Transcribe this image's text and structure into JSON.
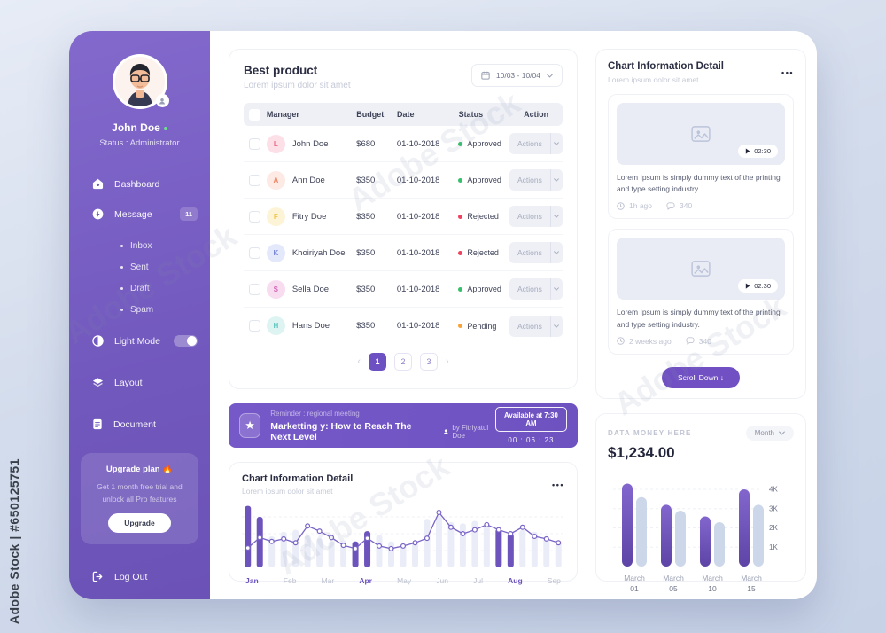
{
  "watermark": {
    "stock_label": "Adobe Stock | #650125751",
    "diagonal_label": "Adobe Stock"
  },
  "colors": {
    "accent": "#6d50c2",
    "sidebar_top": "#8369cc",
    "sidebar_bottom": "#6b52b6",
    "status": {
      "Approved": "#35c06b",
      "Rejected": "#f0415f",
      "Pending": "#f7a23b"
    },
    "bar_light": "#eaedf7",
    "bar_purple": "#6d53bc",
    "line_purple": "#7a64c6",
    "money_bar_light": "#cdd7ea",
    "money_bar_top": "#8266cd",
    "money_bar_bottom": "#5e44a6"
  },
  "sidebar": {
    "user": {
      "name": "John Doe",
      "status": "Status : Administrator"
    },
    "dashboard_label": "Dashboard",
    "message_label": "Message",
    "message_badge": "11",
    "subitems": [
      "Inbox",
      "Sent",
      "Draft",
      "Spam"
    ],
    "light_mode_label": "Light Mode",
    "layout_label": "Layout",
    "document_label": "Document",
    "upgrade": {
      "title": "Upgrade plan 🔥",
      "desc": "Get 1 month free trial and unlock all Pro features",
      "button": "Upgrade"
    },
    "logout_label": "Log Out"
  },
  "best_product": {
    "title": "Best product",
    "subtitle": "Lorem ipsum dolor sit amet",
    "date_range": "10/03 - 10/04",
    "columns": {
      "manager": "Manager",
      "budget": "Budget",
      "date": "Date",
      "status": "Status",
      "action": "Action"
    },
    "action_label": "Actions",
    "rows": [
      {
        "initial": "L",
        "avatar_bg": "#fcdfe7",
        "avatar_fg": "#ec6a88",
        "name": "John Doe",
        "budget": "$680",
        "date": "01-10-2018",
        "status": "Approved"
      },
      {
        "initial": "A",
        "avatar_bg": "#fdeae4",
        "avatar_fg": "#ef8465",
        "name": "Ann Doe",
        "budget": "$350",
        "date": "01-10-2018",
        "status": "Approved"
      },
      {
        "initial": "F",
        "avatar_bg": "#fdf4d7",
        "avatar_fg": "#edc64a",
        "name": "Fitry Doe",
        "budget": "$350",
        "date": "01-10-2018",
        "status": "Rejected"
      },
      {
        "initial": "K",
        "avatar_bg": "#e4e8fb",
        "avatar_fg": "#7585da",
        "name": "Khoiriyah Doe",
        "budget": "$350",
        "date": "01-10-2018",
        "status": "Rejected"
      },
      {
        "initial": "S",
        "avatar_bg": "#f8dcf0",
        "avatar_fg": "#d466b6",
        "name": "Sella Doe",
        "budget": "$350",
        "date": "01-10-2018",
        "status": "Approved"
      },
      {
        "initial": "H",
        "avatar_bg": "#def4f2",
        "avatar_fg": "#62c6be",
        "name": "Hans Doe",
        "budget": "$350",
        "date": "01-10-2018",
        "status": "Pending"
      }
    ],
    "pagination": {
      "pages": [
        "1",
        "2",
        "3"
      ],
      "active": "1",
      "prev": "‹",
      "next": "›"
    }
  },
  "banner": {
    "reminder": "Reminder : regional meeting",
    "title": "Marketting y: How to Reach The Next Level",
    "author": "by Fitriyatul Doe",
    "available": "Available at 7:30 AM",
    "timer": "00 : 06 : 23"
  },
  "mid_chart": {
    "title": "Chart Information Detail",
    "subtitle": "Lorem ipsum dolor sit amet",
    "menu": "•••"
  },
  "news_panel": {
    "title": "Chart Information Detail",
    "subtitle": "Lorem ipsum dolor sit amet",
    "menu": "•••",
    "cards": [
      {
        "duration": "02:30",
        "text": "Lorem Ipsum is simply dummy text of the printing and type setting industry.",
        "time": "1h ago",
        "comments": "340"
      },
      {
        "duration": "02:30",
        "text": "Lorem Ipsum is simply dummy text of the printing and type setting industry.",
        "time": "2 weeks ago",
        "comments": "340"
      }
    ],
    "scroll_button": "Scroll Down ↓"
  },
  "money_panel": {
    "label": "DATA MONEY HERE",
    "amount": "$1,234.00",
    "period": "Month"
  },
  "chart_data": [
    {
      "type": "bar+line",
      "title": "Chart Information Detail",
      "categories": [
        "Jan",
        "Feb",
        "Mar",
        "Apr",
        "May",
        "Jun",
        "Jul",
        "Aug",
        "Sep"
      ],
      "highlighted_categories": [
        "Jan",
        "Apr",
        "Aug"
      ],
      "bars_per_month": 3,
      "units": "relative-percent (no y-axis shown)",
      "ylim": [
        0,
        100
      ],
      "bars": {
        "values": [
          95,
          78,
          48,
          55,
          58,
          50,
          45,
          40,
          42,
          40,
          56,
          50,
          40,
          35,
          38,
          75,
          80,
          70,
          68,
          72,
          65,
          60,
          52,
          58,
          55,
          48,
          40
        ],
        "highlight_indices": [
          0,
          1,
          9,
          10,
          21,
          22
        ]
      },
      "line": {
        "values": [
          30,
          46,
          40,
          44,
          38,
          64,
          56,
          46,
          34,
          29,
          45,
          33,
          29,
          33,
          38,
          45,
          85,
          62,
          52,
          58,
          66,
          58,
          52,
          62,
          48,
          44,
          38
        ]
      },
      "grid": "3 dashed horizontal lines",
      "legend": "none"
    },
    {
      "type": "bar",
      "title": "DATA MONEY HERE",
      "categories": [
        {
          "month": "March",
          "day": "01"
        },
        {
          "month": "March",
          "day": "05"
        },
        {
          "month": "March",
          "day": "10"
        },
        {
          "month": "March",
          "day": "15"
        }
      ],
      "series": [
        {
          "name": "primary",
          "values": [
            4300,
            3200,
            2600,
            4000
          ]
        },
        {
          "name": "secondary",
          "values": [
            3600,
            2900,
            2300,
            3200
          ]
        }
      ],
      "yticks": [
        "1K",
        "2K",
        "3K",
        "4K"
      ],
      "ylim": [
        0,
        4600
      ],
      "ytick_side": "right",
      "grid": "dashed horizontal at each tick",
      "legend": "none"
    }
  ]
}
